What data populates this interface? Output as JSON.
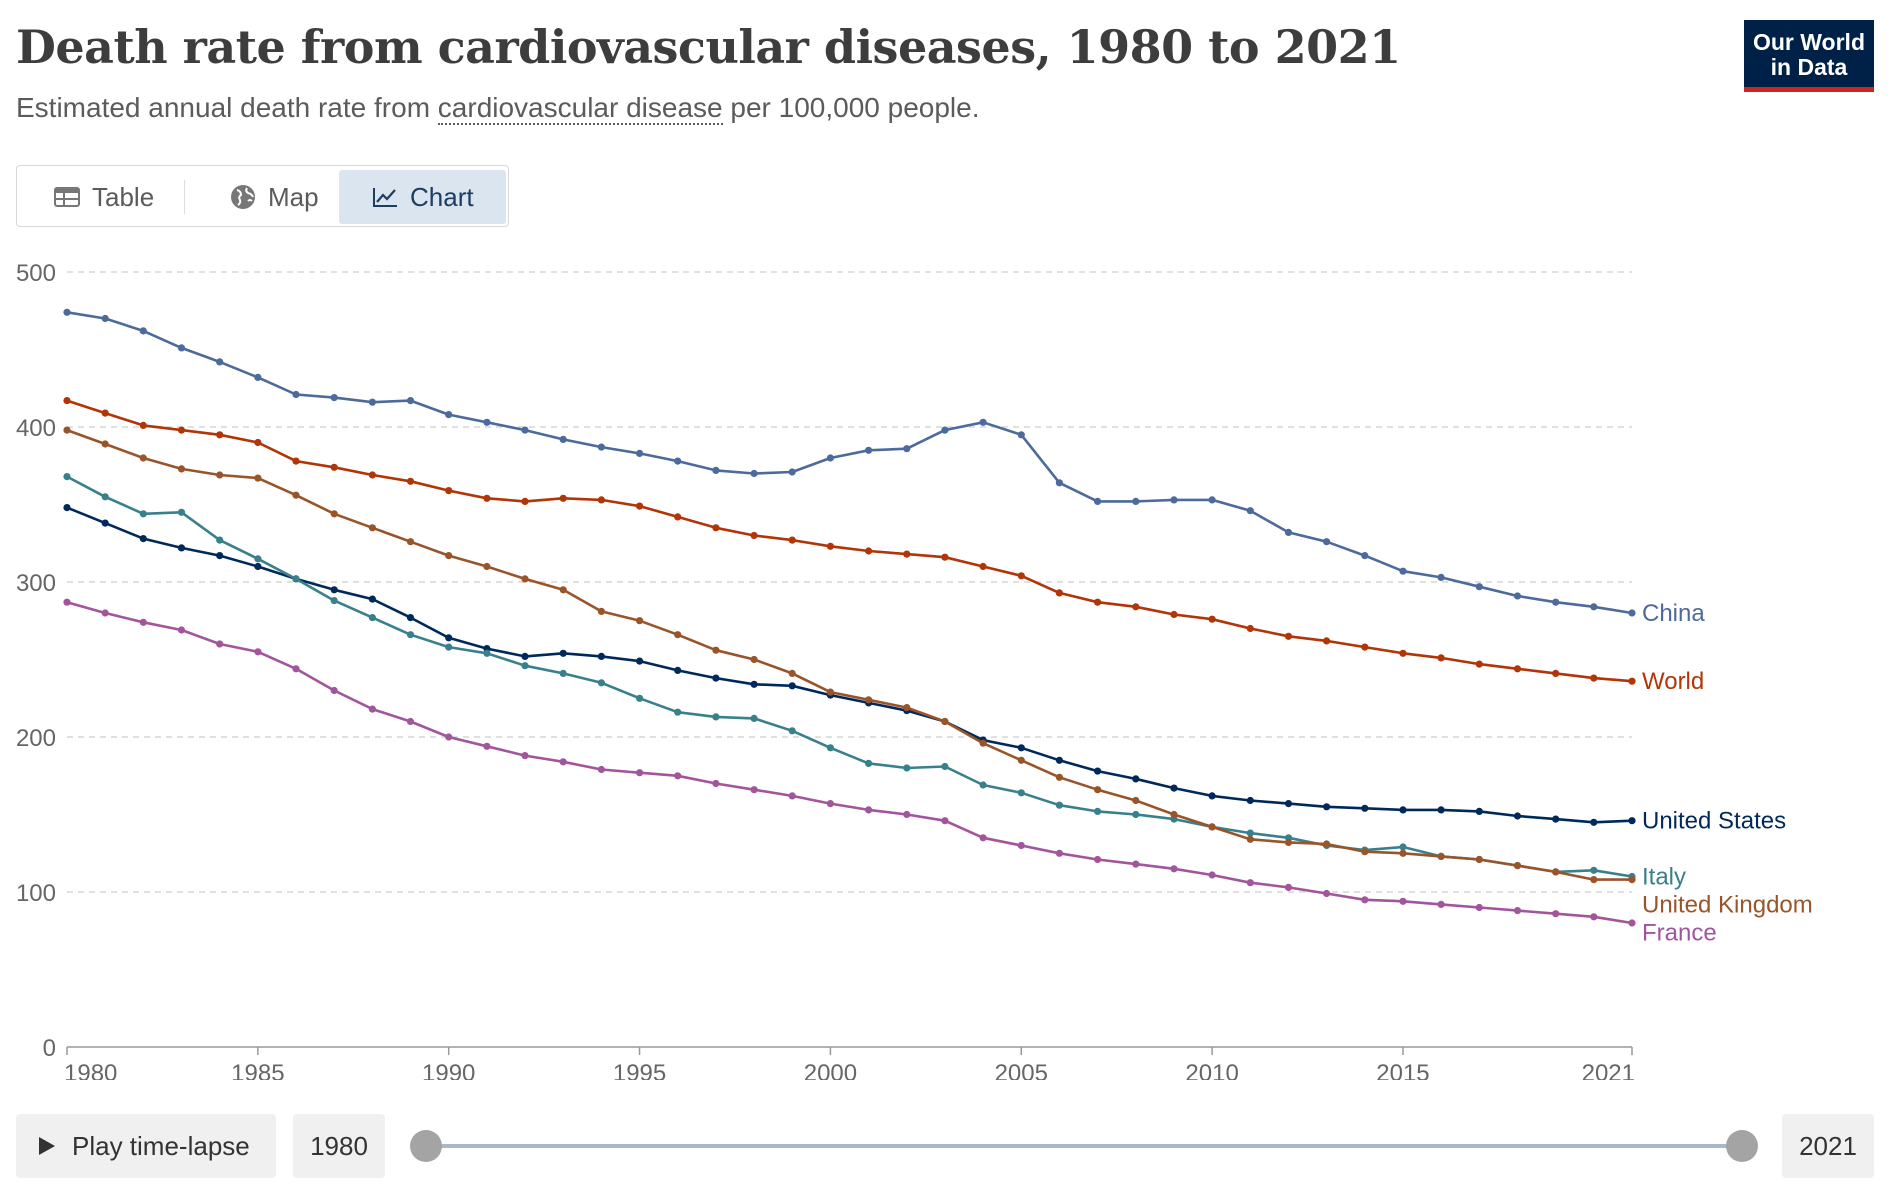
{
  "header": {
    "title": "Death rate from cardiovascular diseases, 1980 to 2021",
    "subtitle_before": "Estimated annual death rate from ",
    "subtitle_link": "cardiovascular disease",
    "subtitle_after": " per 100,000 people."
  },
  "logo": {
    "line1": "Our World",
    "line2": "in Data",
    "bg_color": "#002147",
    "accent_color": "#ce261e"
  },
  "tabs": [
    {
      "label": "Table",
      "icon": "table-icon",
      "active": false
    },
    {
      "label": "Map",
      "icon": "globe-icon",
      "active": false
    },
    {
      "label": "Chart",
      "icon": "line-chart-icon",
      "active": true
    }
  ],
  "timeline": {
    "play_label": "Play time-lapse",
    "start_year": "1980",
    "end_year": "2021",
    "range": [
      1980,
      2021
    ]
  },
  "chart_data": {
    "type": "line",
    "title": "Death rate from cardiovascular diseases, 1980 to 2021",
    "subtitle": "Estimated annual death rate from cardiovascular disease per 100,000 people.",
    "ylim": [
      0,
      500
    ],
    "xlim": [
      1980,
      2021
    ],
    "yticks": [
      0,
      100,
      200,
      300,
      400,
      500
    ],
    "xticks": [
      1980,
      1985,
      1990,
      1995,
      2000,
      2005,
      2010,
      2015,
      2021
    ],
    "grid": "horizontal dashed",
    "legend": "right end labels",
    "x": [
      1980,
      1981,
      1982,
      1983,
      1984,
      1985,
      1986,
      1987,
      1988,
      1989,
      1990,
      1991,
      1992,
      1993,
      1994,
      1995,
      1996,
      1997,
      1998,
      1999,
      2000,
      2001,
      2002,
      2003,
      2004,
      2005,
      2006,
      2007,
      2008,
      2009,
      2010,
      2011,
      2012,
      2013,
      2014,
      2015,
      2016,
      2017,
      2018,
      2019,
      2020,
      2021
    ],
    "series": [
      {
        "name": "China",
        "color": "#4c6a9c",
        "values": [
          474,
          470,
          462,
          451,
          442,
          432,
          421,
          419,
          416,
          417,
          408,
          403,
          398,
          392,
          387,
          383,
          378,
          372,
          370,
          371,
          380,
          385,
          386,
          398,
          403,
          395,
          364,
          352,
          352,
          353,
          353,
          346,
          332,
          326,
          317,
          307,
          303,
          297,
          291,
          287,
          284,
          280
        ]
      },
      {
        "name": "World",
        "color": "#b13507",
        "values": [
          417,
          409,
          401,
          398,
          395,
          390,
          378,
          374,
          369,
          365,
          359,
          354,
          352,
          354,
          353,
          349,
          342,
          335,
          330,
          327,
          323,
          320,
          318,
          316,
          310,
          304,
          293,
          287,
          284,
          279,
          276,
          270,
          265,
          262,
          258,
          254,
          251,
          247,
          244,
          241,
          238,
          236
        ]
      },
      {
        "name": "United States",
        "color": "#00295b",
        "values": [
          348,
          338,
          328,
          322,
          317,
          310,
          302,
          295,
          289,
          277,
          264,
          257,
          252,
          254,
          252,
          249,
          243,
          238,
          234,
          233,
          227,
          222,
          217,
          210,
          198,
          193,
          185,
          178,
          173,
          167,
          162,
          159,
          157,
          155,
          154,
          153,
          153,
          152,
          149,
          147,
          145,
          146
        ]
      },
      {
        "name": "Italy",
        "color": "#38808c",
        "values": [
          368,
          355,
          344,
          345,
          327,
          315,
          302,
          288,
          277,
          266,
          258,
          254,
          246,
          241,
          235,
          225,
          216,
          213,
          212,
          204,
          193,
          183,
          180,
          181,
          169,
          164,
          156,
          152,
          150,
          147,
          142,
          138,
          135,
          130,
          127,
          129,
          123,
          121,
          117,
          113,
          114,
          110
        ]
      },
      {
        "name": "United Kingdom",
        "color": "#99542a",
        "values": [
          398,
          389,
          380,
          373,
          369,
          367,
          356,
          344,
          335,
          326,
          317,
          310,
          302,
          295,
          281,
          275,
          266,
          256,
          250,
          241,
          229,
          224,
          219,
          210,
          196,
          185,
          174,
          166,
          159,
          150,
          142,
          134,
          132,
          131,
          126,
          125,
          123,
          121,
          117,
          113,
          108,
          108
        ]
      },
      {
        "name": "France",
        "color": "#a2559c",
        "values": [
          287,
          280,
          274,
          269,
          260,
          255,
          244,
          230,
          218,
          210,
          200,
          194,
          188,
          184,
          179,
          177,
          175,
          170,
          166,
          162,
          157,
          153,
          150,
          146,
          135,
          130,
          125,
          121,
          118,
          115,
          111,
          106,
          103,
          99,
          95,
          94,
          92,
          90,
          88,
          86,
          84,
          80
        ]
      }
    ]
  }
}
